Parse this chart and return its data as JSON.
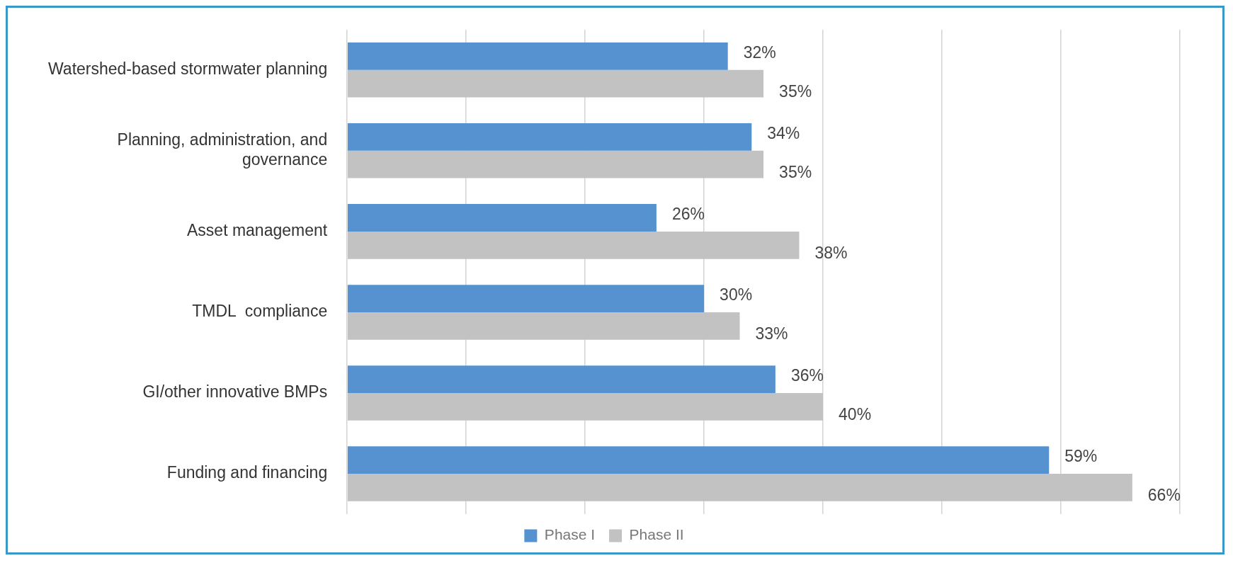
{
  "chart_data": {
    "type": "bar",
    "orientation": "horizontal",
    "categories": [
      "Watershed-based stormwater planning",
      "Planning, administration, and governance",
      "Asset management",
      "TMDL  compliance",
      "GI/other innovative BMPs",
      "Funding and financing"
    ],
    "series": [
      {
        "name": "Phase I",
        "color": "#5592cf",
        "values": [
          32,
          34,
          26,
          30,
          36,
          59
        ],
        "value_labels": [
          "32%",
          "34%",
          "26%",
          "30%",
          "36%",
          "59%"
        ]
      },
      {
        "name": "Phase II",
        "color": "#c2c2c2",
        "values": [
          35,
          35,
          38,
          33,
          40,
          66
        ],
        "value_labels": [
          "35%",
          "35%",
          "38%",
          "33%",
          "40%",
          "66%"
        ]
      }
    ],
    "tick_labels": "y",
    "grid": "x",
    "legend": "bottom"
  }
}
